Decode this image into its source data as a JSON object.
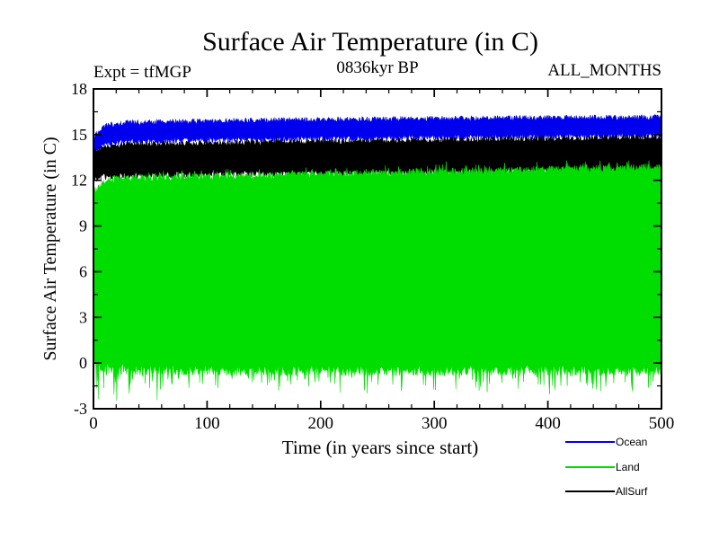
{
  "page": {
    "background": "#ffffff"
  },
  "header": {
    "title": "Surface Air Temperature (in C)",
    "expt_label": "Expt = tfMGP",
    "time_label": "0836kyr BP",
    "months_label": "ALL_MONTHS"
  },
  "axes": {
    "xlabel": "Time (in years since start)",
    "ylabel": "Surface Air Temperature (in C)"
  },
  "legend": {
    "items": [
      {
        "label": "Ocean",
        "color": "#0000ee"
      },
      {
        "label": "Land",
        "color": "#00dd00"
      },
      {
        "label": "AllSurf",
        "color": "#000000"
      }
    ]
  },
  "chart_data": {
    "type": "area",
    "title": "Surface Air Temperature (in C)",
    "subtitle": "0836kyr BP",
    "annotations": [
      "Expt = tfMGP",
      "ALL_MONTHS"
    ],
    "xlabel": "Time (in years since start)",
    "ylabel": "Surface Air Temperature (in C)",
    "xlim": [
      0,
      500
    ],
    "ylim": [
      -3,
      18
    ],
    "x_major_ticks": [
      0,
      100,
      200,
      300,
      400,
      500
    ],
    "x_minor_tick_interval": 20,
    "y_major_ticks": [
      18,
      15,
      12,
      9,
      6,
      3,
      0,
      -3
    ],
    "y_minor_tick_interval": 1.5,
    "grid": false,
    "legend_position": "below-bottom-right",
    "series_note": "Monthly values over 500 years drawn as dense vertical bands; envelope = [year, seasonal max, seasonal min] in deg C",
    "series": [
      {
        "name": "Ocean",
        "color": "#0000ee",
        "seed": 7,
        "envelope": [
          [
            0,
            14.9,
            13.7
          ],
          [
            10,
            15.6,
            14.4
          ],
          [
            30,
            15.8,
            14.55
          ],
          [
            150,
            15.95,
            14.7
          ],
          [
            300,
            16.05,
            14.8
          ],
          [
            500,
            16.15,
            14.95
          ]
        ],
        "edge_noise": {
          "top": 0.18,
          "bottom": 0.18
        },
        "spikes_top": {
          "prob": 0.0,
          "amp": 0
        },
        "spikes_bottom": {
          "prob": 0.0,
          "amp_early": 0,
          "amp_late": 0,
          "until": 0
        }
      },
      {
        "name": "AllSurf",
        "color": "#000000",
        "seed": 29,
        "envelope": [
          [
            0,
            13.8,
            12.2
          ],
          [
            10,
            14.2,
            12.25
          ],
          [
            30,
            14.35,
            12.3
          ],
          [
            150,
            14.5,
            12.45
          ],
          [
            300,
            14.65,
            12.55
          ],
          [
            500,
            14.85,
            12.65
          ]
        ],
        "edge_noise": {
          "top": 0.2,
          "bottom": 0.22
        },
        "spikes_top": {
          "prob": 0.05,
          "amp": 0.25
        },
        "spikes_bottom": {
          "prob": 0.05,
          "amp_early": 0.25,
          "amp_late": 0.25,
          "until": 500
        }
      },
      {
        "name": "Land",
        "color": "#00dd00",
        "seed": 13,
        "envelope": [
          [
            0,
            11.2,
            0.2
          ],
          [
            10,
            12.0,
            -0.35
          ],
          [
            30,
            12.15,
            -0.45
          ],
          [
            150,
            12.3,
            -0.5
          ],
          [
            300,
            12.55,
            -0.5
          ],
          [
            500,
            12.85,
            -0.5
          ]
        ],
        "edge_noise": {
          "top": 0.25,
          "bottom": 0.35
        },
        "spikes_top": {
          "prob": 0.12,
          "amp": 0.45
        },
        "spikes_bottom": {
          "prob": 0.17,
          "amp_early": 2.2,
          "amp_late": 1.3,
          "until": 65
        }
      }
    ]
  }
}
